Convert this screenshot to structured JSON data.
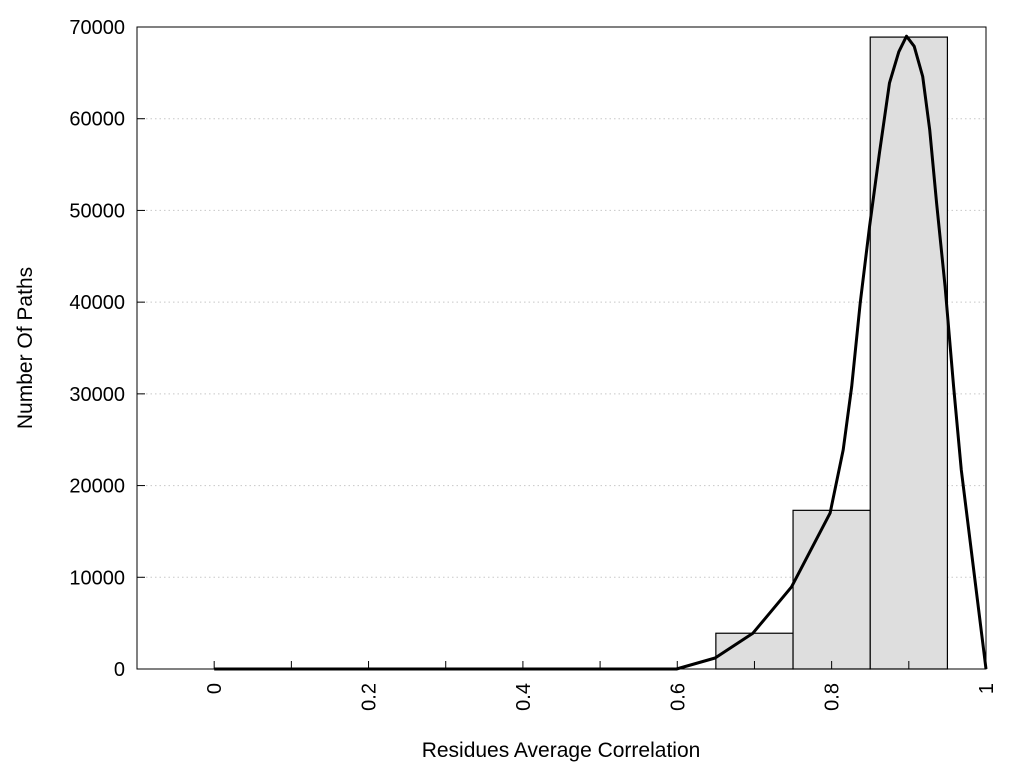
{
  "chart_data": {
    "type": "bar",
    "title": "",
    "xlabel": "Residues Average Correlation",
    "ylabel": "Number Of Paths",
    "xlim": [
      -0.1,
      1.0
    ],
    "ylim": [
      0,
      70000
    ],
    "grid": "horizontal dotted",
    "xticks": [
      0,
      0.1,
      0.2,
      0.3,
      0.4,
      0.5,
      0.6,
      0.7,
      0.8,
      0.9,
      1.0
    ],
    "xtick_labels": [
      "0",
      "0.2",
      "0.4",
      "0.6",
      "0.8",
      "1"
    ],
    "xtick_label_values": [
      0,
      0.2,
      0.4,
      0.6,
      0.8,
      1.0
    ],
    "ytick_labels": [
      "0",
      "10000",
      "20000",
      "30000",
      "40000",
      "50000",
      "60000",
      "70000"
    ],
    "ytick_values": [
      0,
      10000,
      20000,
      30000,
      40000,
      50000,
      60000,
      70000
    ],
    "bars": [
      {
        "x0": 0.65,
        "x1": 0.75,
        "value": 3900
      },
      {
        "x0": 0.75,
        "x1": 0.85,
        "value": 17300
      },
      {
        "x0": 0.85,
        "x1": 0.95,
        "value": 68900
      }
    ],
    "curve": {
      "x": [
        0,
        0.2,
        0.4,
        0.599,
        0.649,
        0.698,
        0.748,
        0.798,
        0.815,
        0.826,
        0.837,
        0.849,
        0.862,
        0.875,
        0.887,
        0.897,
        0.907,
        0.918,
        0.927,
        0.936,
        0.947,
        0.958,
        0.968,
        1.0
      ],
      "y": [
        0,
        0,
        0,
        0,
        1200,
        3900,
        8950,
        17000,
        23900,
        30800,
        39900,
        48200,
        56300,
        63900,
        67300,
        69000,
        67900,
        64600,
        58800,
        50800,
        41700,
        30800,
        21700,
        0
      ]
    },
    "colors": {
      "bar_fill": "#dedede",
      "bar_stroke": "#000000",
      "curve": "#000000",
      "grid": "#c8c8c8"
    }
  }
}
